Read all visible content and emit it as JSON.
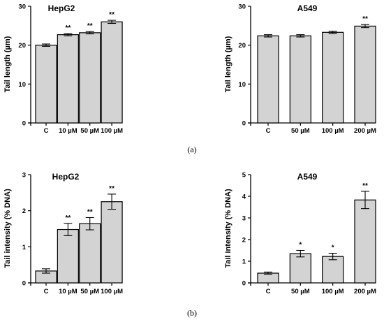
{
  "panel_labels": [
    "(a)",
    "(b)"
  ],
  "colors": {
    "bar_fill": "#d3d3d3",
    "bar_stroke": "#000000",
    "axis": "#000000"
  },
  "chart_data": [
    {
      "type": "bar",
      "title": "HepG2",
      "ylabel": "Tail length (µm)",
      "categories": [
        "C",
        "10 µM",
        "50 µM",
        "100 µM"
      ],
      "values": [
        20.0,
        22.7,
        23.2,
        26.0
      ],
      "errors": [
        0.3,
        0.3,
        0.3,
        0.4
      ],
      "significance": [
        "",
        "**",
        "**",
        "**"
      ],
      "ylim": [
        0,
        30
      ],
      "yticks": [
        0,
        10,
        20,
        30
      ],
      "grid": false
    },
    {
      "type": "bar",
      "title": "A549",
      "ylabel": "Tail length (µm)",
      "categories": [
        "C",
        "50 µM",
        "100 µM",
        "200 µM"
      ],
      "values": [
        22.4,
        22.4,
        23.3,
        24.9
      ],
      "errors": [
        0.3,
        0.3,
        0.3,
        0.4
      ],
      "significance": [
        "",
        "",
        "",
        "**"
      ],
      "ylim": [
        0,
        30
      ],
      "yticks": [
        0,
        10,
        20,
        30
      ],
      "grid": false
    },
    {
      "type": "bar",
      "title": "HepG2",
      "ylabel": "Tail intensity (% DNA)",
      "categories": [
        "C",
        "10 µM",
        "50 µM",
        "100 µM"
      ],
      "values": [
        0.33,
        1.48,
        1.64,
        2.25
      ],
      "errors": [
        0.06,
        0.17,
        0.17,
        0.21
      ],
      "significance": [
        "",
        "**",
        "**",
        "**"
      ],
      "ylim": [
        0,
        3
      ],
      "yticks": [
        0,
        1,
        2,
        3
      ],
      "grid": false
    },
    {
      "type": "bar",
      "title": "A549",
      "ylabel": "Tail intensity (% DNA)",
      "categories": [
        "C",
        "50 µM",
        "100 µM",
        "200 µM"
      ],
      "values": [
        0.45,
        1.35,
        1.22,
        3.83
      ],
      "errors": [
        0.05,
        0.15,
        0.15,
        0.4
      ],
      "significance": [
        "",
        "*",
        "*",
        "**"
      ],
      "ylim": [
        0,
        5
      ],
      "yticks": [
        0,
        1,
        2,
        3,
        4,
        5
      ],
      "grid": false
    }
  ]
}
